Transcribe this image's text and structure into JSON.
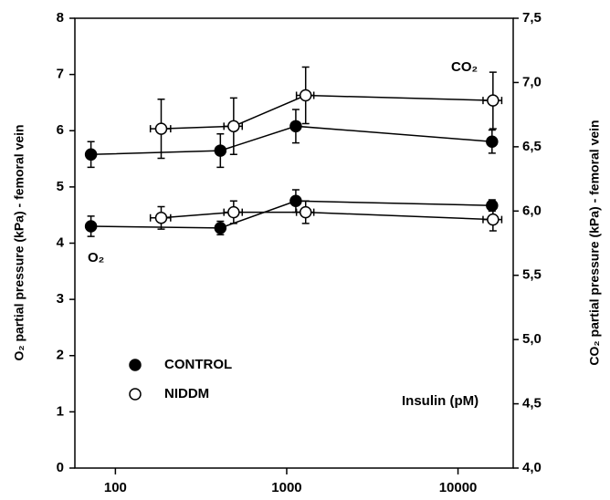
{
  "chart_data": {
    "type": "line",
    "ylabel": "O₂ partial pressure (kPa) - femoral vein",
    "y2label": "CO₂ partial pressure (kPa) - femoral vein",
    "annotations": [
      "CO₂",
      "O₂",
      "Insulin (pM)"
    ],
    "xscale": "log",
    "xlim": [
      58,
      21000
    ],
    "xticks": [
      100,
      1000,
      10000
    ],
    "ylim": [
      0,
      8
    ],
    "yticks": [
      0,
      1,
      2,
      3,
      4,
      5,
      6,
      7,
      8
    ],
    "y2lim": [
      4.0,
      7.5
    ],
    "y2ticks": [
      {
        "value": 4.0,
        "label": "4,0"
      },
      {
        "value": 4.5,
        "label": "4,5"
      },
      {
        "value": 5.0,
        "label": "5,0"
      },
      {
        "value": 5.5,
        "label": "5,5"
      },
      {
        "value": 6.0,
        "label": "6,0"
      },
      {
        "value": 6.5,
        "label": "6,5"
      },
      {
        "value": 7.0,
        "label": "7,0"
      },
      {
        "value": 7.5,
        "label": "7,5"
      }
    ],
    "legend": "lower left",
    "series": [
      {
        "name": "CONTROL",
        "color": "#000000",
        "filled": true,
        "o2": {
          "x": [
            72,
            410,
            1130,
            15800
          ],
          "values": [
            4.3,
            4.27,
            4.75,
            4.67
          ],
          "errors": [
            0.18,
            0.12,
            0.2,
            0.1
          ],
          "xerr": [
            0,
            0,
            0,
            0
          ]
        },
        "co2": {
          "axis": "y2",
          "x": [
            72,
            410,
            1130,
            15800
          ],
          "values": [
            6.44,
            6.47,
            6.66,
            6.54
          ],
          "errors": [
            0.1,
            0.13,
            0.13,
            0.09
          ],
          "xerr": [
            0,
            0,
            0,
            0
          ]
        }
      },
      {
        "name": "NIDDM",
        "color": "#000000",
        "filled": false,
        "o2": {
          "x": [
            185,
            490,
            1290,
            16000
          ],
          "values": [
            4.45,
            4.55,
            4.55,
            4.42
          ],
          "errors": [
            0.2,
            0.2,
            0.2,
            0.2
          ],
          "xerr": [
            25,
            60,
            150,
            2000
          ]
        },
        "co2": {
          "axis": "y2",
          "x": [
            185,
            490,
            1290,
            16000
          ],
          "values": [
            6.64,
            6.66,
            6.9,
            6.86
          ],
          "errors": [
            0.23,
            0.22,
            0.22,
            0.22
          ],
          "xerr": [
            25,
            60,
            150,
            2000
          ]
        }
      }
    ]
  }
}
